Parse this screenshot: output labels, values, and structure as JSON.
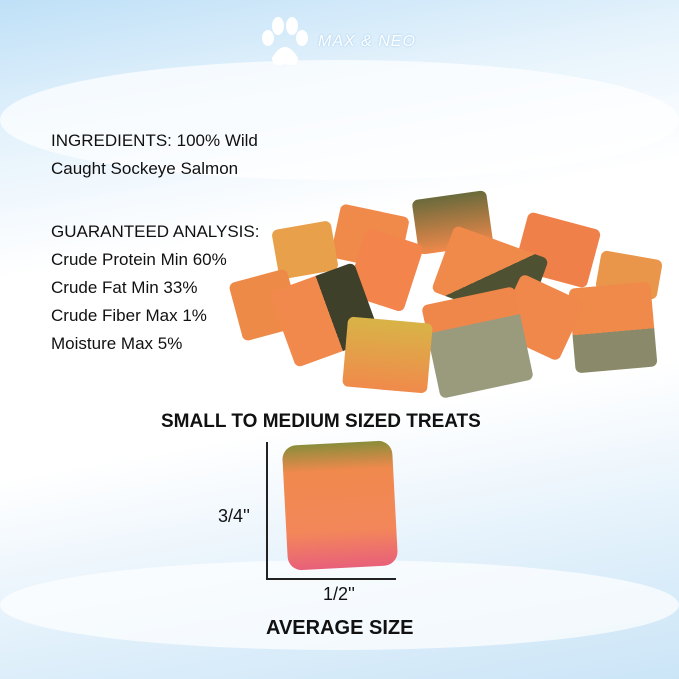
{
  "brand": {
    "name": "MAX & NEO",
    "icon": "paw-icon"
  },
  "ingredients": [
    "INGREDIENTS: 100% Wild",
    "Caught Sockeye Salmon"
  ],
  "analysis": {
    "heading": "GUARANTEED ANALYSIS:",
    "items": [
      "Crude Protein Min 60%",
      "Crude Fat Min 33%",
      "Crude Fiber Max 1%",
      "Moisture Max 5%"
    ]
  },
  "size": {
    "heading": "SMALL TO MEDIUM SIZED TREATS",
    "height_label": "3/4''",
    "width_label": "1/2''",
    "caption": "AVERAGE SIZE"
  },
  "colors": {
    "salmon": "#f08a4b",
    "skin": "#5a5a3a",
    "crust": "#c9b04a"
  }
}
